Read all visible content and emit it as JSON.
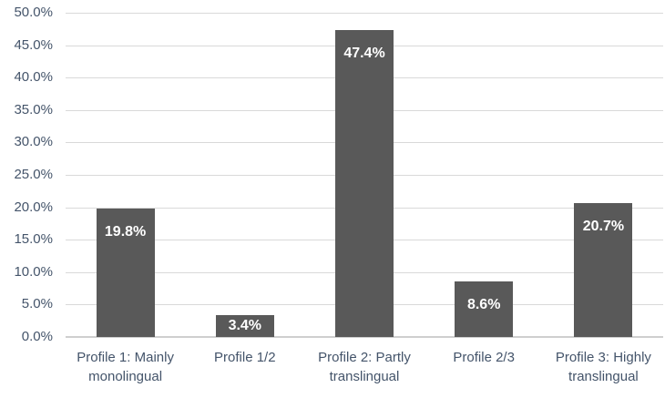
{
  "chart_data": {
    "type": "bar",
    "title": "",
    "xlabel": "",
    "ylabel": "",
    "categories": [
      "Profile 1: Mainly monolingual",
      "Profile 1/2",
      "Profile 2: Partly translingual",
      "Profile 2/3",
      "Profile 3: Highly translingual"
    ],
    "values": [
      19.8,
      3.4,
      47.4,
      8.6,
      20.7
    ],
    "value_labels": [
      "19.8%",
      "3.4%",
      "47.4%",
      "8.6%",
      "20.7%"
    ],
    "ylim": [
      0,
      50
    ],
    "ytick_step": 5,
    "ytick_labels": [
      "0.0%",
      "5.0%",
      "10.0%",
      "15.0%",
      "20.0%",
      "25.0%",
      "30.0%",
      "35.0%",
      "40.0%",
      "45.0%",
      "50.0%"
    ],
    "grid": true,
    "legend": false,
    "colors": {
      "bar": "#595959",
      "data_label_text": "#ffffff",
      "axis_text": "#44546a",
      "gridline": "#d9d9d9",
      "axis_line": "#cfcfcf",
      "background": "#ffffff"
    }
  }
}
